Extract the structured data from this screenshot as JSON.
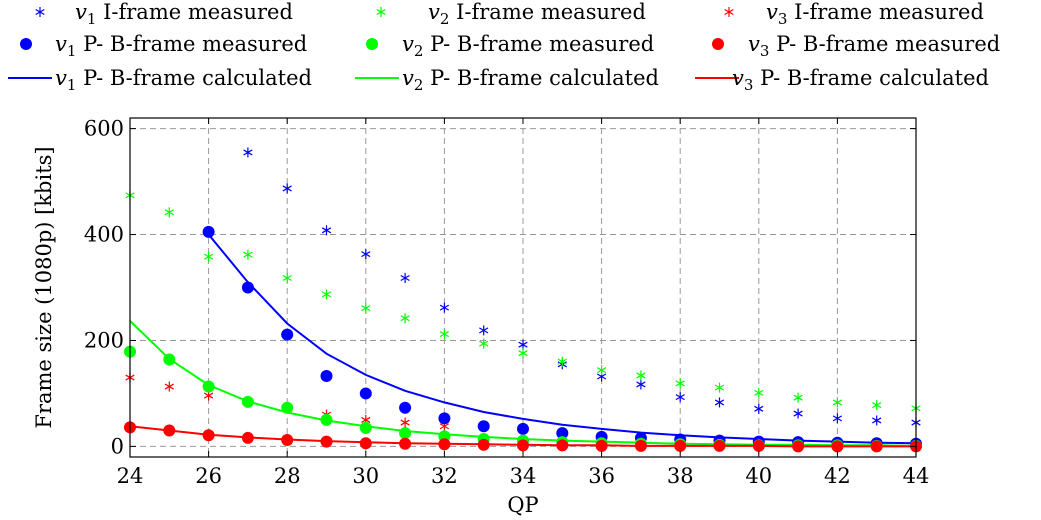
{
  "chart_data": {
    "type": "scatter",
    "xlabel": "QP",
    "ylabel": "Frame size (1080p) [kbits]",
    "xlim": [
      24,
      44
    ],
    "ylim": [
      -20,
      620
    ],
    "xticks": [
      24,
      26,
      28,
      30,
      32,
      34,
      36,
      38,
      40,
      42,
      44
    ],
    "yticks": [
      0,
      200,
      400,
      600
    ],
    "grid": true,
    "legend_position": "top",
    "colors": {
      "v1": "#0000ff",
      "v2": "#00ff00",
      "v3": "#ff0000"
    },
    "series": [
      {
        "name": "I-frame measured",
        "version": "v1",
        "marker": "asterisk",
        "color": "#0000ff",
        "x": [
          27,
          28,
          29,
          30,
          31,
          32,
          33,
          34,
          35,
          36,
          37,
          38,
          39,
          40,
          41,
          42,
          43,
          44
        ],
        "y": [
          555,
          487,
          408,
          363,
          318,
          262,
          219,
          192,
          155,
          132,
          117,
          93,
          83,
          71,
          62,
          53,
          49,
          45
        ]
      },
      {
        "name": "I-frame measured",
        "version": "v2",
        "marker": "asterisk",
        "color": "#00ff00",
        "x": [
          24,
          25,
          26,
          27,
          28,
          29,
          30,
          31,
          32,
          33,
          34,
          35,
          36,
          37,
          38,
          39,
          40,
          41,
          42,
          43,
          44
        ],
        "y": [
          474,
          442,
          358,
          362,
          318,
          287,
          261,
          242,
          212,
          194,
          176,
          160,
          144,
          134,
          119,
          111,
          101,
          92,
          83,
          78,
          72
        ]
      },
      {
        "name": "I-frame measured",
        "version": "v3",
        "marker": "asterisk",
        "color": "#ff0000",
        "x": [
          24,
          25,
          26,
          29,
          30,
          31,
          32
        ],
        "y": [
          130,
          113,
          96,
          60,
          50,
          45,
          38
        ]
      },
      {
        "name": "P- B-frame measured",
        "version": "v1",
        "marker": "dot",
        "color": "#0000ff",
        "x": [
          26,
          27,
          28,
          29,
          30,
          31,
          32,
          33,
          34,
          35,
          36,
          37,
          38,
          39,
          40,
          41,
          42,
          43,
          44
        ],
        "y": [
          405,
          300,
          211,
          133,
          100,
          73,
          53,
          38,
          33,
          25,
          18,
          16,
          13,
          11,
          9,
          8,
          7,
          6,
          5
        ]
      },
      {
        "name": "P- B-frame measured",
        "version": "v2",
        "marker": "dot",
        "color": "#00ff00",
        "x": [
          24,
          25,
          26,
          27,
          28,
          29,
          30,
          31,
          32,
          33,
          34,
          35,
          36,
          37,
          38,
          39,
          40,
          41,
          42,
          43,
          44
        ],
        "y": [
          179,
          164,
          113,
          84,
          73,
          50,
          35,
          25,
          19,
          14,
          11,
          8,
          6,
          5,
          4,
          3,
          2,
          2,
          2,
          1,
          1
        ]
      },
      {
        "name": "P- B-frame measured",
        "version": "v3",
        "marker": "dot",
        "color": "#ff0000",
        "x": [
          24,
          25,
          26,
          27,
          28,
          29,
          30,
          31,
          32,
          33,
          34,
          35,
          36,
          37,
          38,
          39,
          40,
          41,
          42,
          43,
          44
        ],
        "y": [
          36,
          30,
          21,
          16,
          12,
          9,
          6,
          5,
          4,
          3,
          2,
          2,
          1,
          1,
          1,
          1,
          1,
          0,
          0,
          0,
          0
        ]
      },
      {
        "name": "P- B-frame calculated",
        "version": "v1",
        "marker": "line",
        "color": "#0000ff",
        "x": [
          26,
          27,
          28,
          29,
          30,
          31,
          32,
          33,
          34,
          35,
          36,
          37,
          38,
          39,
          40,
          41,
          42,
          43,
          44
        ],
        "y": [
          400,
          310,
          232,
          175,
          135,
          105,
          83,
          65,
          52,
          41,
          33,
          26,
          21,
          17,
          14,
          11,
          9,
          7,
          6
        ]
      },
      {
        "name": "P- B-frame calculated",
        "version": "v2",
        "marker": "line",
        "color": "#00ff00",
        "x": [
          24,
          25,
          26,
          27,
          28,
          29,
          30,
          31,
          32,
          33,
          34,
          35,
          36,
          37,
          38,
          39,
          40,
          41,
          42,
          43,
          44
        ],
        "y": [
          237,
          165,
          116,
          85,
          64,
          49,
          38,
          29,
          23,
          18,
          14,
          11,
          9,
          7,
          5,
          4,
          3,
          3,
          2,
          2,
          1
        ]
      },
      {
        "name": "P- B-frame calculated",
        "version": "v3",
        "marker": "line",
        "color": "#ff0000",
        "x": [
          24,
          25,
          26,
          27,
          28,
          29,
          30,
          31,
          32,
          33,
          34,
          35,
          36,
          37,
          38,
          39,
          40,
          41,
          42,
          43,
          44
        ],
        "y": [
          38,
          30,
          22,
          17,
          13,
          10,
          8,
          6,
          5,
          4,
          3,
          2,
          2,
          1,
          1,
          1,
          1,
          0,
          0,
          0,
          0
        ]
      }
    ],
    "legend": [
      {
        "version": "v",
        "subscript": "1",
        "label": "I-frame measured",
        "marker": "asterisk",
        "color": "#0000ff"
      },
      {
        "version": "v",
        "subscript": "2",
        "label": "I-frame measured",
        "marker": "asterisk",
        "color": "#00ff00"
      },
      {
        "version": "v",
        "subscript": "3",
        "label": "I-frame measured",
        "marker": "asterisk",
        "color": "#ff0000"
      },
      {
        "version": "v",
        "subscript": "1",
        "label": "P- B-frame measured",
        "marker": "dot",
        "color": "#0000ff"
      },
      {
        "version": "v",
        "subscript": "2",
        "label": "P- B-frame measured",
        "marker": "dot",
        "color": "#00ff00"
      },
      {
        "version": "v",
        "subscript": "3",
        "label": "P- B-frame measured",
        "marker": "dot",
        "color": "#ff0000"
      },
      {
        "version": "v",
        "subscript": "1",
        "label": "P- B-frame calculated",
        "marker": "line",
        "color": "#0000ff"
      },
      {
        "version": "v",
        "subscript": "2",
        "label": "P- B-frame calculated",
        "marker": "line",
        "color": "#00ff00"
      },
      {
        "version": "v",
        "subscript": "3",
        "label": "P- B-frame calculated",
        "marker": "line",
        "color": "#ff0000"
      }
    ]
  }
}
